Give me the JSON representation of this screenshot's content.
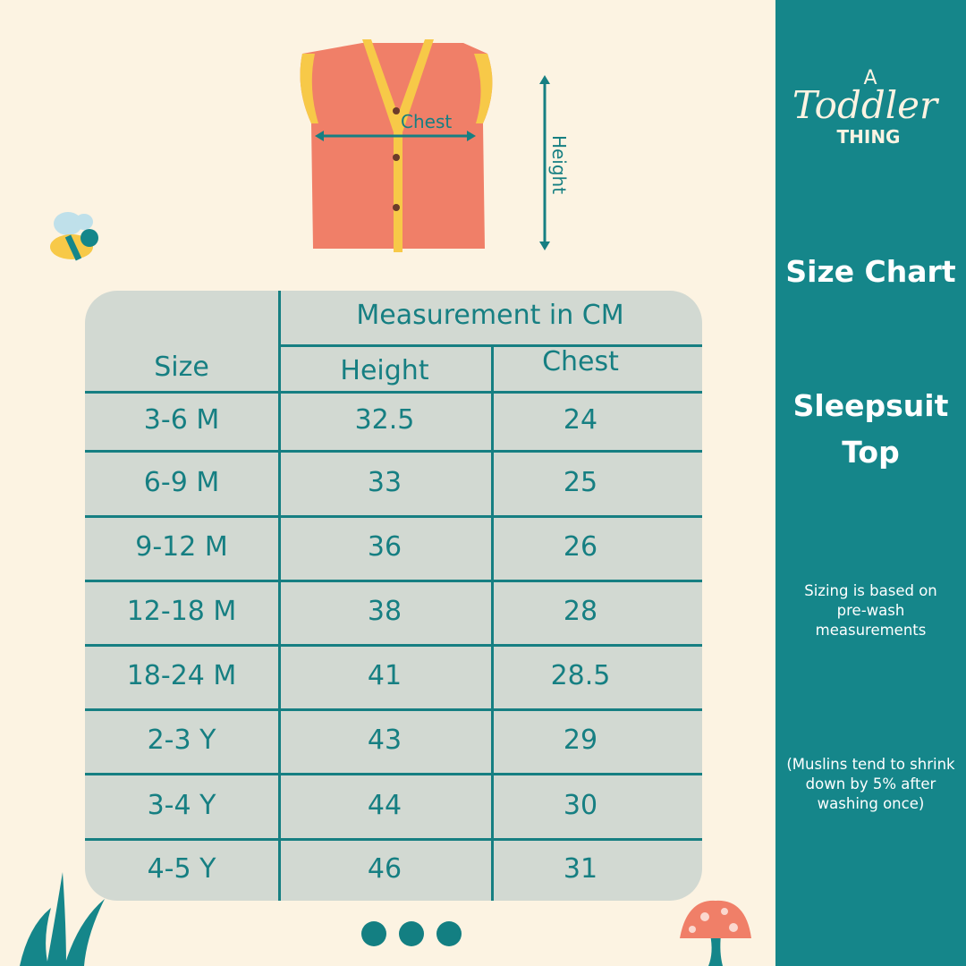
{
  "brand": {
    "logo_text": "A Toddler Thing"
  },
  "sidebar": {
    "title": "Size Chart",
    "product_line1": "Sleepsuit",
    "product_line2": "Top",
    "note": "Sizing is based on pre-wash measurements",
    "shrink_note": "(Muslins tend to shrink down by 5% after washing once)"
  },
  "diagram": {
    "chest_label": "Chest",
    "height_label": "Height"
  },
  "table": {
    "header_size": "Size",
    "header_group": "Measurement in CM",
    "header_height": "Height",
    "header_chest": "Chest",
    "rows": [
      {
        "size": "3-6 M",
        "height": "32.5",
        "chest": "24"
      },
      {
        "size": "6-9 M",
        "height": "33",
        "chest": "25"
      },
      {
        "size": "9-12 M",
        "height": "36",
        "chest": "26"
      },
      {
        "size": "12-18 M",
        "height": "38",
        "chest": "28"
      },
      {
        "size": "18-24 M",
        "height": "41",
        "chest": "28.5"
      },
      {
        "size": "2-3 Y",
        "height": "43",
        "chest": "29"
      },
      {
        "size": "3-4 Y",
        "height": "44",
        "chest": "30"
      },
      {
        "size": "4-5 Y",
        "height": "46",
        "chest": "31"
      }
    ]
  },
  "carousel": {
    "dots": 3
  },
  "colors": {
    "teal": "#15868a",
    "background": "#fcf3e2",
    "table": "#d2d9d2",
    "garment": "#f07f68",
    "trim": "#f7c948"
  }
}
